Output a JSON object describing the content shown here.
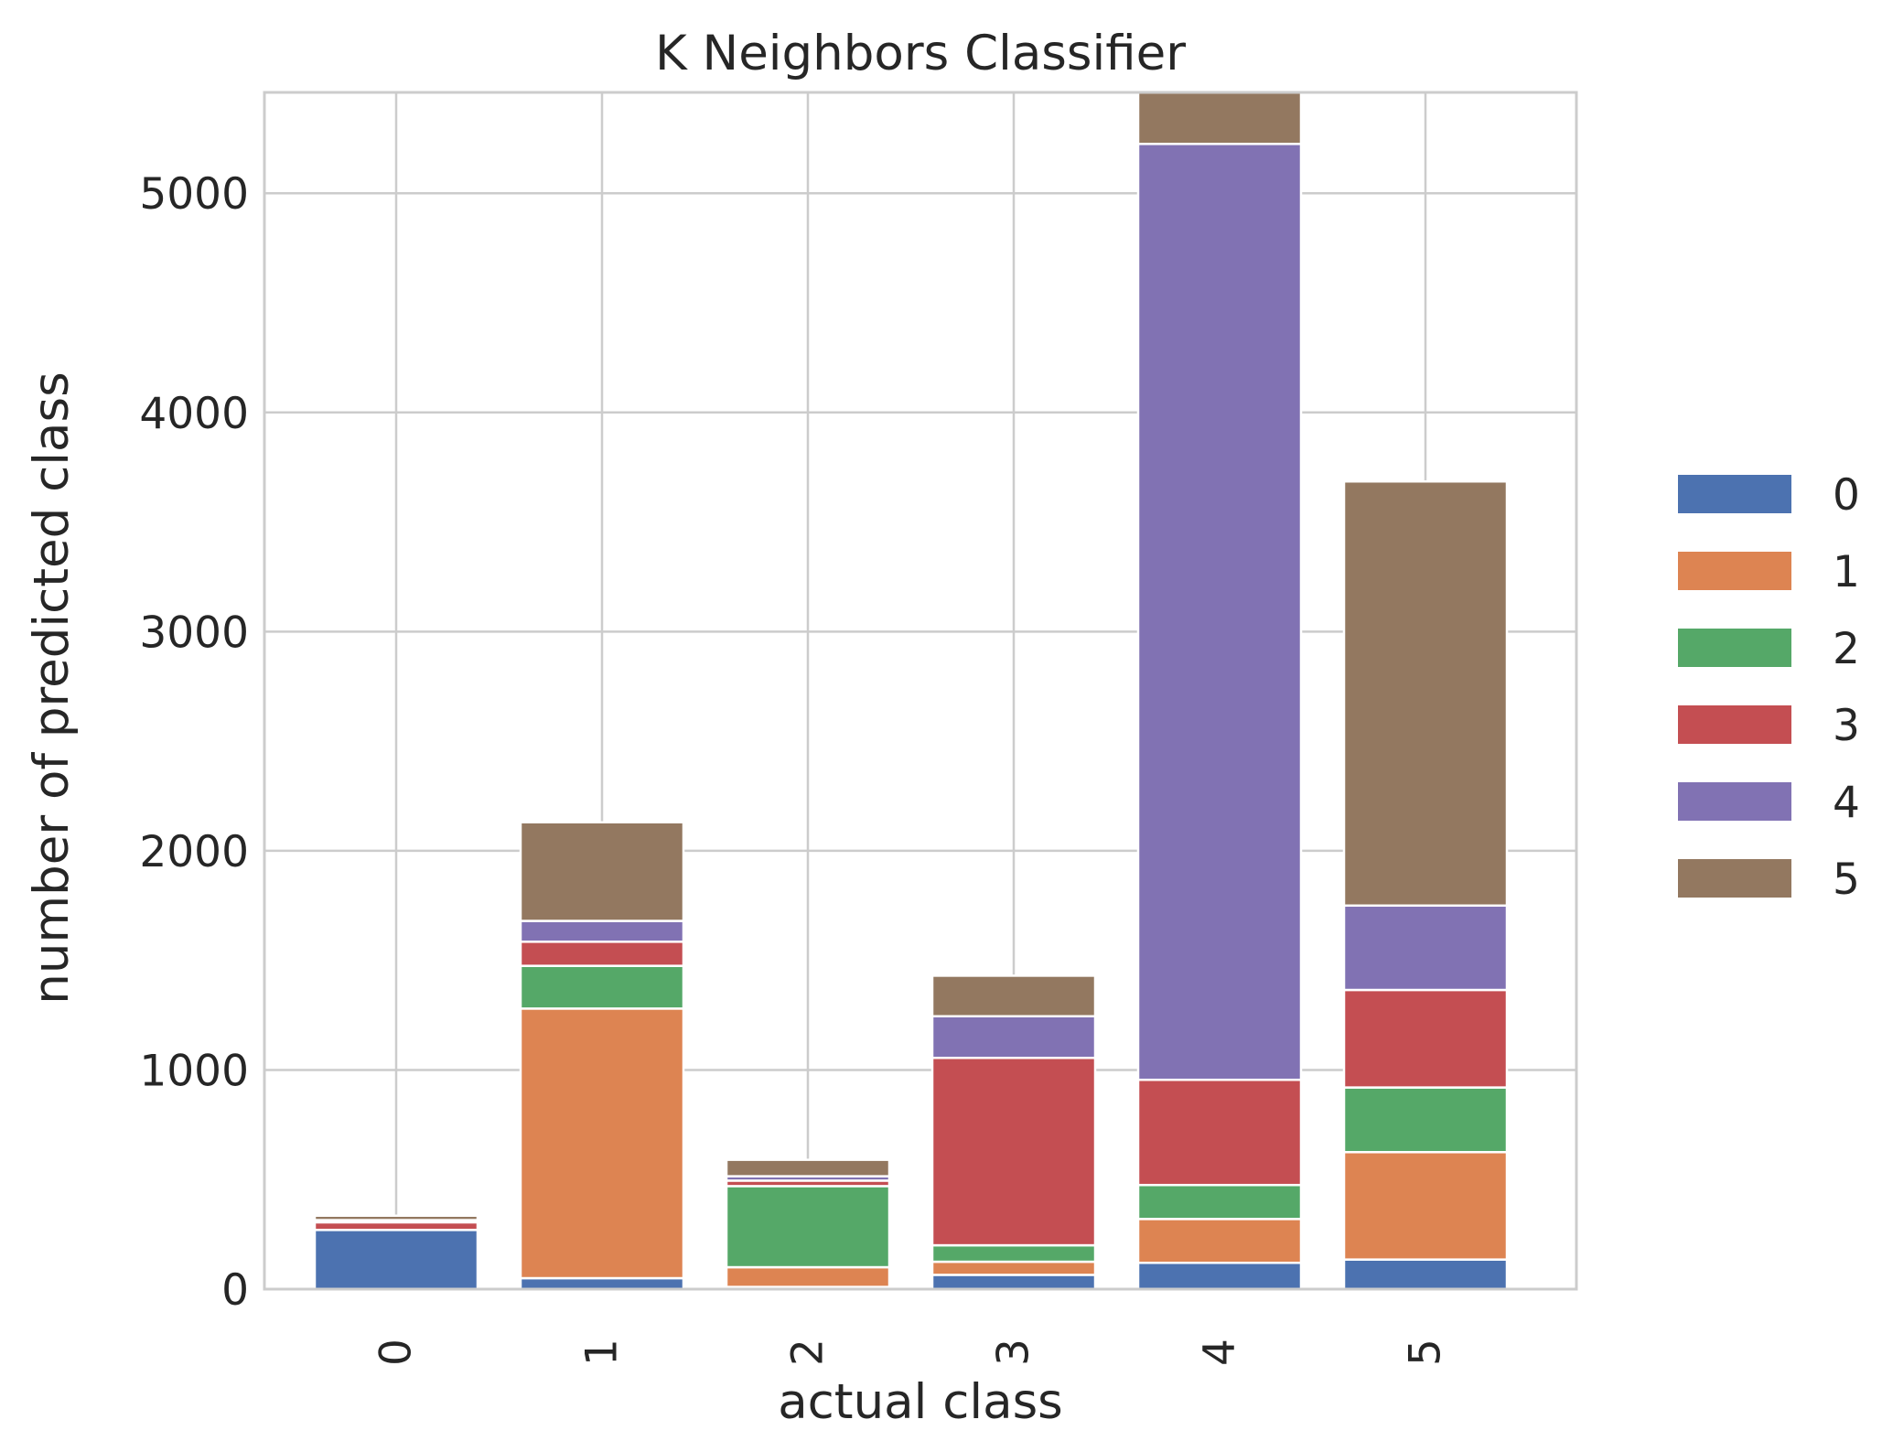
{
  "chart_data": {
    "type": "bar",
    "stacked": true,
    "title": "K Neighbors Classifier",
    "xlabel": "actual class",
    "ylabel": "number of predicted class",
    "categories": [
      "0",
      "1",
      "2",
      "3",
      "4",
      "5"
    ],
    "ylim": [
      0,
      5460
    ],
    "yticks": [
      0,
      1000,
      2000,
      3000,
      4000,
      5000
    ],
    "grid": true,
    "legend_position": "right",
    "series": [
      {
        "name": "0",
        "color": "#4c72b0",
        "values": [
          270,
          50,
          10,
          65,
          120,
          135
        ]
      },
      {
        "name": "1",
        "color": "#dd8452",
        "values": [
          0,
          1230,
          90,
          60,
          200,
          490
        ]
      },
      {
        "name": "2",
        "color": "#55a868",
        "values": [
          0,
          195,
          370,
          75,
          155,
          295
        ]
      },
      {
        "name": "3",
        "color": "#c44e52",
        "values": [
          35,
          110,
          25,
          855,
          480,
          445
        ]
      },
      {
        "name": "4",
        "color": "#8172b3",
        "values": [
          10,
          95,
          20,
          190,
          4270,
          385
        ]
      },
      {
        "name": "5",
        "color": "#937860",
        "values": [
          20,
          450,
          75,
          185,
          240,
          1935
        ]
      }
    ]
  }
}
